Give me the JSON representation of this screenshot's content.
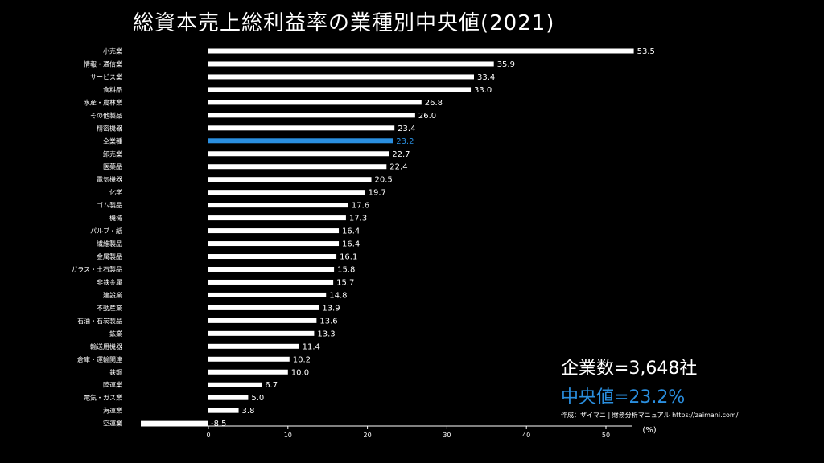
{
  "page": {
    "title": "総資本売上総利益率の業種別中央値(2021)",
    "company_count": "企業数=3,648社",
    "median_text": "中央値=23.2%",
    "credit": "作成：ザイマニ | 財務分析マニュアル https://zaimani.com/"
  },
  "colors": {
    "bar": "#ffffff",
    "highlight": "#2a8fe0",
    "background": "#000000",
    "axis": "#ffffff"
  },
  "chart_data": {
    "type": "bar",
    "orientation": "horizontal",
    "title": "総資本売上総利益率の業種別中央値(2021)",
    "xlabel": "(%)",
    "ylabel": "",
    "xlim": [
      -8.5,
      55
    ],
    "xticks": [
      0,
      10,
      20,
      30,
      40,
      50
    ],
    "grid": false,
    "highlight_category": "全業種",
    "categories": [
      "小売業",
      "情報・通信業",
      "サービス業",
      "食料品",
      "水産・農林業",
      "その他製品",
      "精密機器",
      "全業種",
      "卸売業",
      "医薬品",
      "電気機器",
      "化学",
      "ゴム製品",
      "機械",
      "パルプ・紙",
      "繊維製品",
      "金属製品",
      "ガラス・土石製品",
      "非鉄金属",
      "建設業",
      "不動産業",
      "石油・石炭製品",
      "鉱業",
      "輸送用機器",
      "倉庫・運輸関連",
      "鉄鋼",
      "陸運業",
      "電気・ガス業",
      "海運業",
      "空運業"
    ],
    "values": [
      53.5,
      35.9,
      33.4,
      33.0,
      26.8,
      26.0,
      23.4,
      23.2,
      22.7,
      22.4,
      20.5,
      19.7,
      17.6,
      17.3,
      16.4,
      16.4,
      16.1,
      15.8,
      15.7,
      14.8,
      13.9,
      13.6,
      13.3,
      11.4,
      10.2,
      10.0,
      6.7,
      5.0,
      3.8,
      -8.5
    ],
    "value_labels": [
      "53.5",
      "35.9",
      "33.4",
      "33.0",
      "26.8",
      "26.0",
      "23.4",
      "23.2",
      "22.7",
      "22.4",
      "20.5",
      "19.7",
      "17.6",
      "17.3",
      "16.4",
      "16.4",
      "16.1",
      "15.8",
      "15.7",
      "14.8",
      "13.9",
      "13.6",
      "13.3",
      "11.4",
      "10.2",
      "10.0",
      "6.7",
      "5.0",
      "3.8",
      "-8.5"
    ]
  }
}
